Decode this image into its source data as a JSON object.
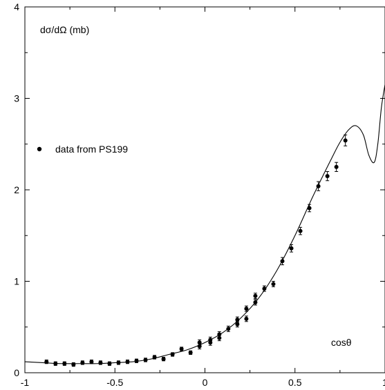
{
  "chart_data": {
    "type": "scatter",
    "title": "",
    "xlabel": "cosθ",
    "ylabel": "dσ/dΩ (mb)",
    "xlim": [
      -1,
      1
    ],
    "ylim": [
      0,
      4
    ],
    "x_ticks": [
      -1,
      -0.5,
      0,
      0.5,
      1
    ],
    "x_tick_labels": [
      "-1",
      "-0.5",
      "0",
      "0.5",
      "1"
    ],
    "y_ticks": [
      0,
      1,
      2,
      3,
      4
    ],
    "y_tick_labels": [
      "0",
      "1",
      "2",
      "3",
      "4"
    ],
    "grid": false,
    "legend": {
      "position": "left",
      "entries": [
        "data from PS199"
      ]
    },
    "series": [
      {
        "name": "data from PS199",
        "kind": "points-with-errorbars",
        "x": [
          -0.88,
          -0.83,
          -0.78,
          -0.73,
          -0.68,
          -0.63,
          -0.58,
          -0.53,
          -0.48,
          -0.43,
          -0.38,
          -0.33,
          -0.28,
          -0.23,
          -0.18,
          -0.13,
          -0.08,
          -0.03,
          -0.03,
          0.03,
          0.03,
          0.08,
          0.08,
          0.13,
          0.18,
          0.18,
          0.23,
          0.23,
          0.28,
          0.28,
          0.33,
          0.38,
          0.43,
          0.48,
          0.53,
          0.58,
          0.63,
          0.68,
          0.73,
          0.78
        ],
        "y": [
          0.12,
          0.1,
          0.1,
          0.09,
          0.11,
          0.12,
          0.11,
          0.1,
          0.11,
          0.12,
          0.13,
          0.14,
          0.17,
          0.15,
          0.2,
          0.26,
          0.22,
          0.29,
          0.33,
          0.33,
          0.36,
          0.38,
          0.42,
          0.48,
          0.53,
          0.58,
          0.59,
          0.7,
          0.77,
          0.84,
          0.92,
          0.97,
          1.22,
          1.36,
          1.55,
          1.8,
          2.04,
          2.15,
          2.25,
          2.54
        ],
        "yerr": [
          0.02,
          0.02,
          0.02,
          0.02,
          0.02,
          0.02,
          0.02,
          0.02,
          0.02,
          0.02,
          0.02,
          0.02,
          0.02,
          0.02,
          0.02,
          0.02,
          0.02,
          0.03,
          0.03,
          0.03,
          0.03,
          0.03,
          0.03,
          0.03,
          0.03,
          0.03,
          0.03,
          0.03,
          0.03,
          0.03,
          0.03,
          0.03,
          0.04,
          0.04,
          0.04,
          0.04,
          0.05,
          0.05,
          0.05,
          0.06
        ]
      },
      {
        "kind": "curve",
        "x": [
          -1.0,
          -0.9,
          -0.8,
          -0.7,
          -0.6,
          -0.5,
          -0.4,
          -0.3,
          -0.2,
          -0.1,
          0.0,
          0.1,
          0.2,
          0.3,
          0.4,
          0.5,
          0.6,
          0.7,
          0.75,
          0.8,
          0.84,
          0.88,
          0.91,
          0.94,
          0.96,
          0.98,
          1.0
        ],
        "y": [
          0.12,
          0.11,
          0.1,
          0.1,
          0.1,
          0.11,
          0.12,
          0.15,
          0.2,
          0.25,
          0.33,
          0.44,
          0.6,
          0.82,
          1.12,
          1.5,
          1.93,
          2.33,
          2.52,
          2.66,
          2.7,
          2.6,
          2.38,
          2.3,
          2.5,
          2.9,
          3.15
        ]
      }
    ]
  }
}
